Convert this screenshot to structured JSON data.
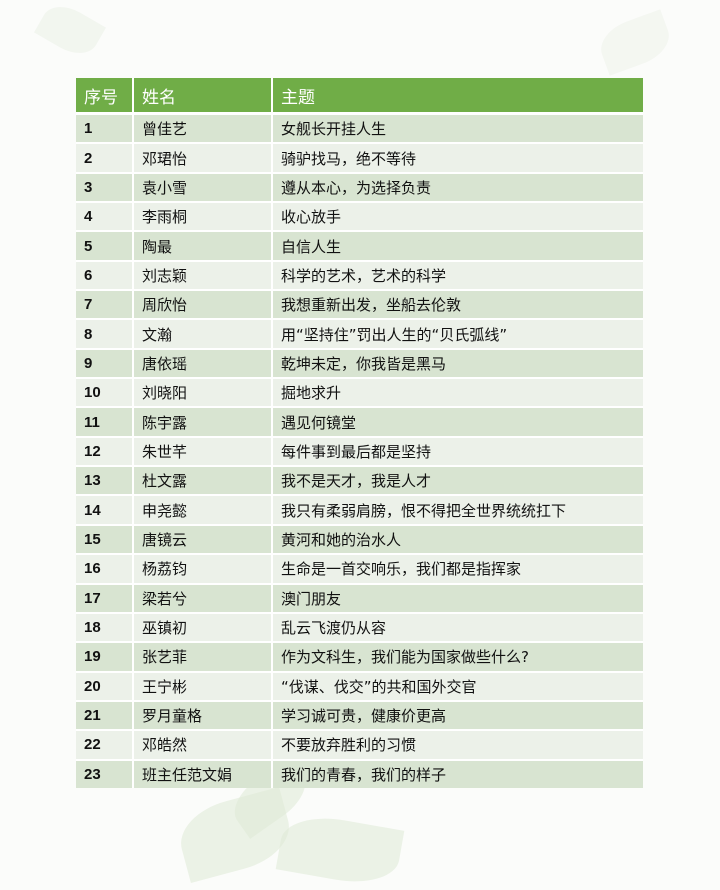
{
  "colors": {
    "header": "#70ad47",
    "row_odd": "#d8e4d1",
    "row_even": "#ecf1e9"
  },
  "table": {
    "headers": [
      "序号",
      "姓名",
      "主题"
    ],
    "rows": [
      [
        "1",
        "曾佳艺",
        "女舰长开挂人生"
      ],
      [
        "2",
        "邓珺怡",
        "骑驴找马，绝不等待"
      ],
      [
        "3",
        "袁小雪",
        "遵从本心，为选择负责"
      ],
      [
        "4",
        "李雨桐",
        "收心放手"
      ],
      [
        "5",
        "陶最",
        "自信人生"
      ],
      [
        "6",
        "刘志颖",
        "科学的艺术，艺术的科学"
      ],
      [
        "7",
        "周欣怡",
        "我想重新出发，坐船去伦敦"
      ],
      [
        "8",
        "文瀚",
        "用“坚持住”罚出人生的“贝氏弧线”"
      ],
      [
        "9",
        "唐依瑶",
        "乾坤未定，你我皆是黑马"
      ],
      [
        "10",
        "刘晓阳",
        "掘地求升"
      ],
      [
        "11",
        "陈宇露",
        "遇见何镜堂"
      ],
      [
        "12",
        "朱世芊",
        "每件事到最后都是坚持"
      ],
      [
        "13",
        "杜文露",
        "我不是天才，我是人才"
      ],
      [
        "14",
        "申尧懿",
        "我只有柔弱肩膀，恨不得把全世界统统扛下"
      ],
      [
        "15",
        "唐镜云",
        "黄河和她的治水人"
      ],
      [
        "16",
        "杨荔钧",
        "生命是一首交响乐，我们都是指挥家"
      ],
      [
        "17",
        "梁若兮",
        "澳门朋友"
      ],
      [
        "18",
        "巫镇初",
        "乱云飞渡仍从容"
      ],
      [
        "19",
        "张艺菲",
        "作为文科生，我们能为国家做些什么?"
      ],
      [
        "20",
        "王宁彬",
        "“伐谋、伐交”的共和国外交官"
      ],
      [
        "21",
        "罗月童格",
        "学习诚可贵，健康价更高"
      ],
      [
        "22",
        "邓皓然",
        "不要放弃胜利的习惯"
      ],
      [
        "23",
        "班主任范文娟",
        "我们的青春，我们的样子"
      ]
    ]
  }
}
